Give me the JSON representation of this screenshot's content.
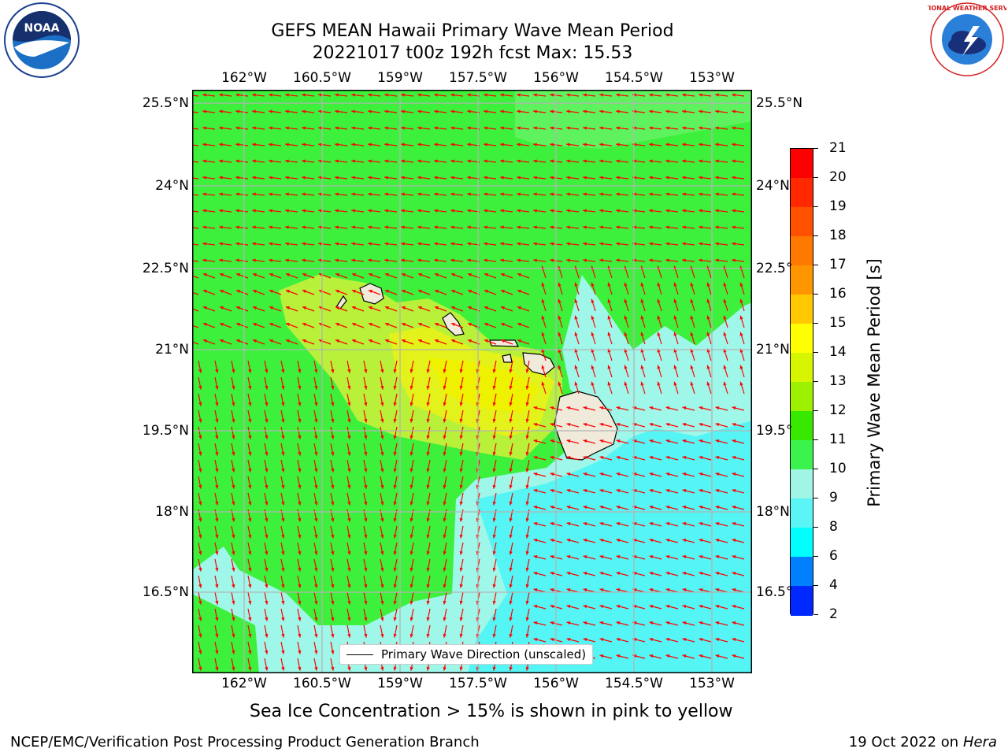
{
  "title": {
    "line1": "GEFS MEAN Hawaii Primary Wave Mean Period",
    "line2": "20221017 t00z 192h fcst   Max: 15.53"
  },
  "logos": {
    "left": "NOAA",
    "right": "NATIONAL WEATHER SERVICE"
  },
  "map": {
    "lon_labels": [
      "162°W",
      "160.5°W",
      "159°W",
      "157.5°W",
      "156°W",
      "154.5°W",
      "153°W"
    ],
    "lat_labels": [
      "25.5°N",
      "24°N",
      "22.5°N",
      "21°N",
      "19.5°N",
      "18°N",
      "16.5°N"
    ],
    "lat_labels_right": [
      "25.5°N",
      "24°N",
      "22.5°",
      "21°N",
      "19.5°",
      "18°N",
      "16.5°"
    ],
    "legend_label": "Primary Wave Direction (unscaled)",
    "field_colors": {
      "green": "#3cf03c",
      "light_green": "#7af57a",
      "yellow_green": "#c8f032",
      "yellow": "#e8f000",
      "cyan_light": "#9ff7ea",
      "cyan": "#55f5f5",
      "land": "#f0eadb",
      "arrow": "#ff0000",
      "grid": "#b4b4b4"
    }
  },
  "colorbar": {
    "label": "Primary Wave Mean Period [s]",
    "ticks": [
      "21",
      "20",
      "19",
      "18",
      "17",
      "16",
      "15",
      "14",
      "13",
      "12",
      "11",
      "10",
      "9",
      "8",
      "6",
      "4",
      "2"
    ],
    "colors": [
      "#ff0000",
      "#ff2800",
      "#ff5000",
      "#ff7800",
      "#ff9600",
      "#ffc800",
      "#ffff00",
      "#d8f500",
      "#9cf000",
      "#38e800",
      "#3cf24c",
      "#a0f5e4",
      "#5cf5f5",
      "#00ffff",
      "#0080ff",
      "#0028ff",
      "#0000ff"
    ]
  },
  "note": "Sea Ice Concentration > 15% is shown in pink to yellow",
  "footer": {
    "left": "NCEP/EMC/Verification Post Processing Product Generation Branch",
    "right_date": "19 Oct 2022 on ",
    "right_machine": "Hera"
  }
}
